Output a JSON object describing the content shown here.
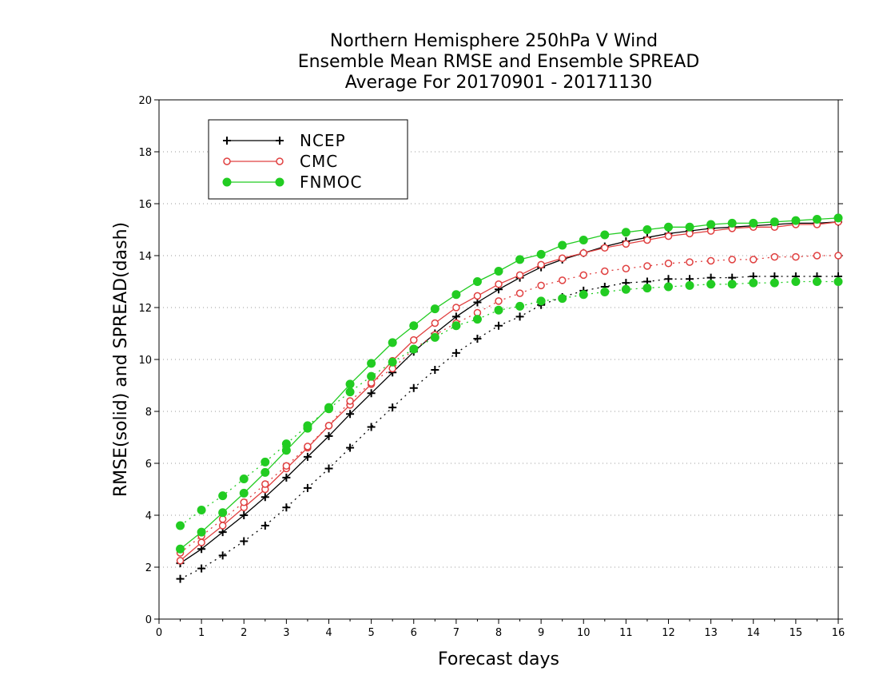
{
  "chart_data": {
    "type": "line",
    "title": [
      "Northern Hemisphere 250hPa V Wind",
      "Ensemble Mean RMSE and Ensemble SPREAD",
      "Average For 20170901 - 20171130"
    ],
    "xlabel": "Forecast days",
    "ylabel": "RMSE(solid) and SPREAD(dash)",
    "xlim": [
      0,
      16
    ],
    "ylim": [
      0,
      20
    ],
    "xticks": [
      0,
      1,
      2,
      3,
      4,
      5,
      6,
      7,
      8,
      9,
      10,
      11,
      12,
      13,
      14,
      15,
      16
    ],
    "yticks": [
      0,
      2,
      4,
      6,
      8,
      10,
      12,
      14,
      16,
      18,
      20
    ],
    "grid": "horizontal dotted",
    "legend_position": "top-left",
    "x": [
      0.5,
      1,
      1.5,
      2,
      2.5,
      3,
      3.5,
      4,
      4.5,
      5,
      5.5,
      6,
      6.5,
      7,
      7.5,
      8,
      8.5,
      9,
      9.5,
      10,
      10.5,
      11,
      11.5,
      12,
      12.5,
      13,
      13.5,
      14,
      14.5,
      15,
      15.5,
      16
    ],
    "series": [
      {
        "name": "NCEP",
        "style": "solid",
        "marker": "plus",
        "color": "#000000",
        "values": [
          2.15,
          2.7,
          3.35,
          4.0,
          4.7,
          5.45,
          6.25,
          7.05,
          7.9,
          8.7,
          9.5,
          10.3,
          11.0,
          11.65,
          12.2,
          12.7,
          13.15,
          13.55,
          13.85,
          14.1,
          14.35,
          14.55,
          14.7,
          14.85,
          14.95,
          15.05,
          15.1,
          15.15,
          15.2,
          15.25,
          15.25,
          15.3
        ]
      },
      {
        "name": "NCEP",
        "style": "dash",
        "marker": "plus",
        "color": "#000000",
        "values": [
          1.55,
          1.95,
          2.45,
          3.0,
          3.6,
          4.3,
          5.05,
          5.8,
          6.6,
          7.4,
          8.15,
          8.9,
          9.6,
          10.25,
          10.8,
          11.3,
          11.65,
          12.1,
          12.4,
          12.65,
          12.8,
          12.95,
          13.0,
          13.1,
          13.1,
          13.15,
          13.15,
          13.2,
          13.2,
          13.2,
          13.2,
          13.2
        ]
      },
      {
        "name": "CMC",
        "style": "solid",
        "marker": "open-circle",
        "color": "#e04040",
        "values": [
          2.25,
          2.95,
          3.6,
          4.3,
          5.0,
          5.8,
          6.6,
          7.45,
          8.25,
          9.05,
          9.95,
          10.75,
          11.4,
          12.0,
          12.45,
          12.9,
          13.25,
          13.65,
          13.9,
          14.1,
          14.3,
          14.45,
          14.6,
          14.75,
          14.85,
          14.95,
          15.05,
          15.1,
          15.1,
          15.2,
          15.2,
          15.3
        ]
      },
      {
        "name": "CMC",
        "style": "dash",
        "marker": "open-circle",
        "color": "#e04040",
        "values": [
          2.55,
          3.2,
          3.85,
          4.5,
          5.2,
          5.9,
          6.65,
          7.45,
          8.4,
          9.1,
          9.65,
          10.4,
          10.95,
          11.4,
          11.8,
          12.25,
          12.55,
          12.85,
          13.05,
          13.25,
          13.4,
          13.5,
          13.6,
          13.7,
          13.75,
          13.8,
          13.85,
          13.85,
          13.95,
          13.95,
          14.0,
          14.0
        ]
      },
      {
        "name": "FNMOC",
        "style": "solid",
        "marker": "filled-circle",
        "color": "#22cc22",
        "values": [
          2.7,
          3.35,
          4.1,
          4.85,
          5.65,
          6.5,
          7.35,
          8.15,
          9.05,
          9.85,
          10.65,
          11.3,
          11.95,
          12.5,
          13.0,
          13.4,
          13.85,
          14.05,
          14.4,
          14.6,
          14.8,
          14.9,
          15.0,
          15.1,
          15.1,
          15.2,
          15.25,
          15.25,
          15.3,
          15.35,
          15.4,
          15.45
        ]
      },
      {
        "name": "FNMOC",
        "style": "dash",
        "marker": "filled-circle",
        "color": "#22cc22",
        "values": [
          3.6,
          4.2,
          4.75,
          5.4,
          6.05,
          6.75,
          7.45,
          8.1,
          8.75,
          9.35,
          9.9,
          10.4,
          10.85,
          11.3,
          11.55,
          11.9,
          12.05,
          12.25,
          12.35,
          12.5,
          12.6,
          12.7,
          12.75,
          12.8,
          12.85,
          12.9,
          12.9,
          12.95,
          12.95,
          13.0,
          13.0,
          13.0
        ]
      }
    ],
    "legend": [
      {
        "name": "NCEP",
        "marker": "plus",
        "color": "#000000"
      },
      {
        "name": "CMC",
        "marker": "open-circle",
        "color": "#e04040"
      },
      {
        "name": "FNMOC",
        "marker": "filled-circle",
        "color": "#22cc22"
      }
    ]
  }
}
